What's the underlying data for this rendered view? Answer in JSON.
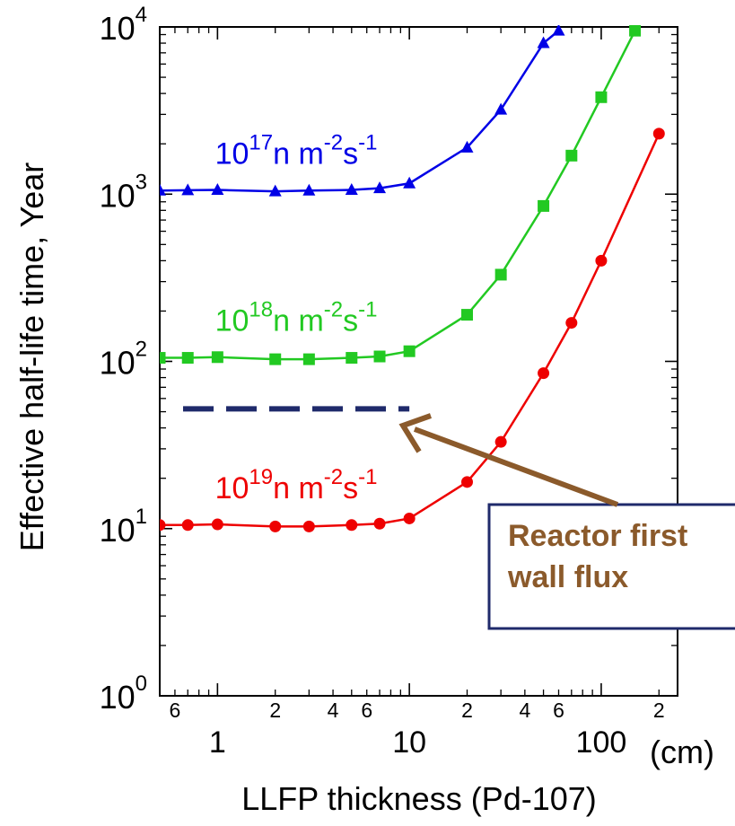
{
  "chart_data": {
    "type": "line",
    "xscale": "log",
    "yscale": "log",
    "xlim": [
      0.5,
      250
    ],
    "ylim": [
      1,
      10000
    ],
    "xlabel": "LLFP thickness (Pd-107)",
    "xunit": "(cm)",
    "ylabel": "Effective half-life time, Year",
    "x_major_ticks": [
      {
        "value": 1,
        "label": "1"
      },
      {
        "value": 10,
        "label": "10"
      },
      {
        "value": 100,
        "label": "100"
      }
    ],
    "x_minor_ticks": [
      {
        "value": 0.6,
        "label": "6"
      },
      {
        "value": 2,
        "label": "2"
      },
      {
        "value": 4,
        "label": "4"
      },
      {
        "value": 6,
        "label": "6"
      },
      {
        "value": 20,
        "label": "2"
      },
      {
        "value": 40,
        "label": "4"
      },
      {
        "value": 60,
        "label": "6"
      },
      {
        "value": 200,
        "label": "2"
      }
    ],
    "y_ticks": [
      {
        "value": 1,
        "base": "10",
        "exp": "0"
      },
      {
        "value": 10,
        "base": "10",
        "exp": "1"
      },
      {
        "value": 100,
        "base": "10",
        "exp": "2"
      },
      {
        "value": 1000,
        "base": "10",
        "exp": "3"
      },
      {
        "value": 10000,
        "base": "10",
        "exp": "4"
      }
    ],
    "series": [
      {
        "label": {
          "base": "10",
          "exp": "17",
          "unit": "n m",
          "unit_exp": "-2",
          "unit2": "s",
          "unit2_exp": "-1"
        },
        "color": "#0000E6",
        "marker": "triangle",
        "x": [
          0.5,
          0.7,
          1,
          2,
          3,
          5,
          7,
          10,
          20,
          30,
          50,
          60
        ],
        "y": [
          1050,
          1055,
          1060,
          1040,
          1050,
          1060,
          1085,
          1160,
          1900,
          3200,
          8000,
          9500
        ]
      },
      {
        "label": {
          "base": "10",
          "exp": "18",
          "unit": "n m",
          "unit_exp": "-2",
          "unit2": "s",
          "unit2_exp": "-1"
        },
        "color": "#22C922",
        "marker": "square",
        "x": [
          0.5,
          0.7,
          1,
          2,
          3,
          5,
          7,
          10,
          20,
          30,
          50,
          70,
          100,
          150
        ],
        "y": [
          105,
          105,
          106,
          103,
          103,
          105,
          107,
          115,
          190,
          330,
          850,
          1700,
          3800,
          9500
        ]
      },
      {
        "label": {
          "base": "10",
          "exp": "19",
          "unit": "n m",
          "unit_exp": "-2",
          "unit2": "s",
          "unit2_exp": "-1"
        },
        "color": "#EE0000",
        "marker": "circle",
        "x": [
          0.5,
          0.7,
          1,
          2,
          3,
          5,
          7,
          10,
          20,
          30,
          50,
          70,
          100,
          200
        ],
        "y": [
          10.5,
          10.5,
          10.6,
          10.3,
          10.3,
          10.5,
          10.7,
          11.5,
          19,
          33,
          85,
          170,
          400,
          2300
        ]
      }
    ],
    "reference_line": {
      "x": [
        0.5,
        10
      ],
      "y": 52,
      "color": "#1F2A6B",
      "style": "dashed"
    },
    "annotation": {
      "lines": [
        "Reactor first",
        "wall flux"
      ],
      "text_color": "#8B5A2B",
      "border_color": "#1F2A6B",
      "arrow_color": "#8B5A2B"
    }
  }
}
